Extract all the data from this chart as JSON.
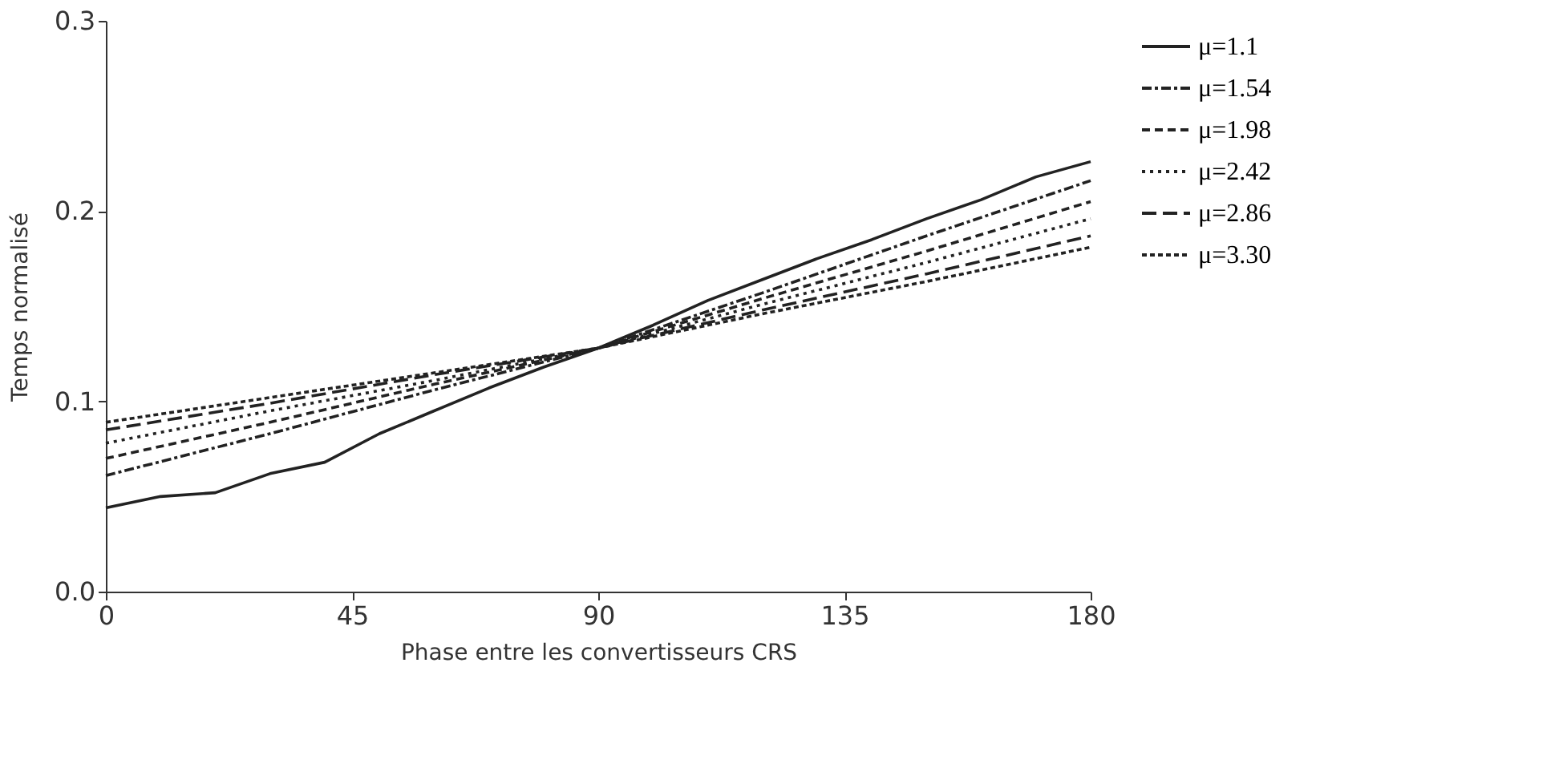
{
  "chart_data": {
    "type": "line",
    "xlabel": "Phase entre les convertisseurs CRS",
    "ylabel": "Temps normalisé",
    "xlim": [
      0,
      180
    ],
    "xticks": [
      0,
      45,
      90,
      135,
      180
    ],
    "ylim": [
      0,
      0.3
    ],
    "yticks": [
      {
        "value": 0,
        "label": "0.0"
      },
      0.1,
      0.2,
      0.3
    ],
    "grid": false,
    "legend": "right",
    "marker": "none",
    "series": [
      {
        "name": "μ=1.1",
        "color": "#222222",
        "line_style": "solid",
        "x": [
          0,
          10,
          20,
          30,
          40,
          50,
          60,
          70,
          80,
          90,
          100,
          110,
          120,
          130,
          140,
          150,
          160,
          170,
          180
        ],
        "values": [
          0.044,
          0.05,
          0.052,
          0.062,
          0.068,
          0.083,
          0.095,
          0.107,
          0.118,
          0.128,
          0.14,
          0.153,
          0.164,
          0.175,
          0.185,
          0.196,
          0.206,
          0.218,
          0.226
        ]
      },
      {
        "name": "μ=1.54",
        "color": "#222222",
        "line_style": "dashdot",
        "x": [
          0,
          30,
          60,
          90,
          120,
          150,
          180
        ],
        "values": [
          0.061,
          0.083,
          0.106,
          0.128,
          0.157,
          0.187,
          0.216
        ]
      },
      {
        "name": "μ=1.98",
        "color": "#222222",
        "line_style": "dashed",
        "x": [
          0,
          30,
          60,
          90,
          120,
          150,
          180
        ],
        "values": [
          0.07,
          0.089,
          0.109,
          0.128,
          0.154,
          0.179,
          0.205
        ]
      },
      {
        "name": "μ=2.42",
        "color": "#222222",
        "line_style": "dotted",
        "x": [
          0,
          30,
          60,
          90,
          120,
          150,
          180
        ],
        "values": [
          0.078,
          0.095,
          0.111,
          0.128,
          0.151,
          0.173,
          0.196
        ]
      },
      {
        "name": "μ=2.86",
        "color": "#222222",
        "line_style": "longdash",
        "x": [
          0,
          30,
          60,
          90,
          120,
          150,
          180
        ],
        "values": [
          0.085,
          0.099,
          0.114,
          0.128,
          0.148,
          0.167,
          0.187
        ]
      },
      {
        "name": "μ=3.30",
        "color": "#222222",
        "line_style": "dotted",
        "x": [
          0,
          30,
          60,
          90,
          120,
          150,
          180
        ],
        "values": [
          0.089,
          0.102,
          0.115,
          0.128,
          0.146,
          0.163,
          0.181
        ]
      }
    ]
  }
}
